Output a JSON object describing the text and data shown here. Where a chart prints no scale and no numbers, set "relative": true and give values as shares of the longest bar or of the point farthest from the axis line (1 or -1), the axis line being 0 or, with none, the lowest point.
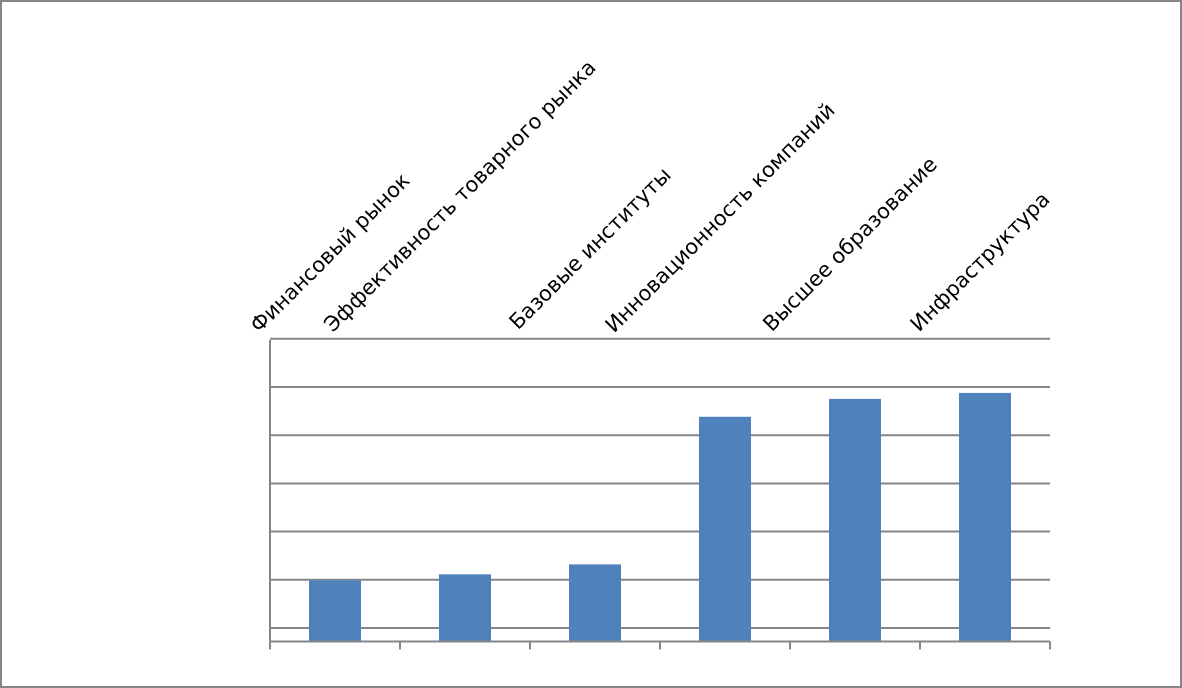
{
  "chart_data": {
    "type": "bar",
    "relative": true,
    "grid": true,
    "color": "#4f81bd",
    "categories": [
      "Финансовый рынок",
      "Эффективность товарного рынка",
      "Базовые институты",
      "Инновационность компаний",
      "Высшее образование",
      "Инфраструктура"
    ],
    "values": [
      0.246,
      0.27,
      0.31,
      0.904,
      0.976,
      1
    ]
  }
}
